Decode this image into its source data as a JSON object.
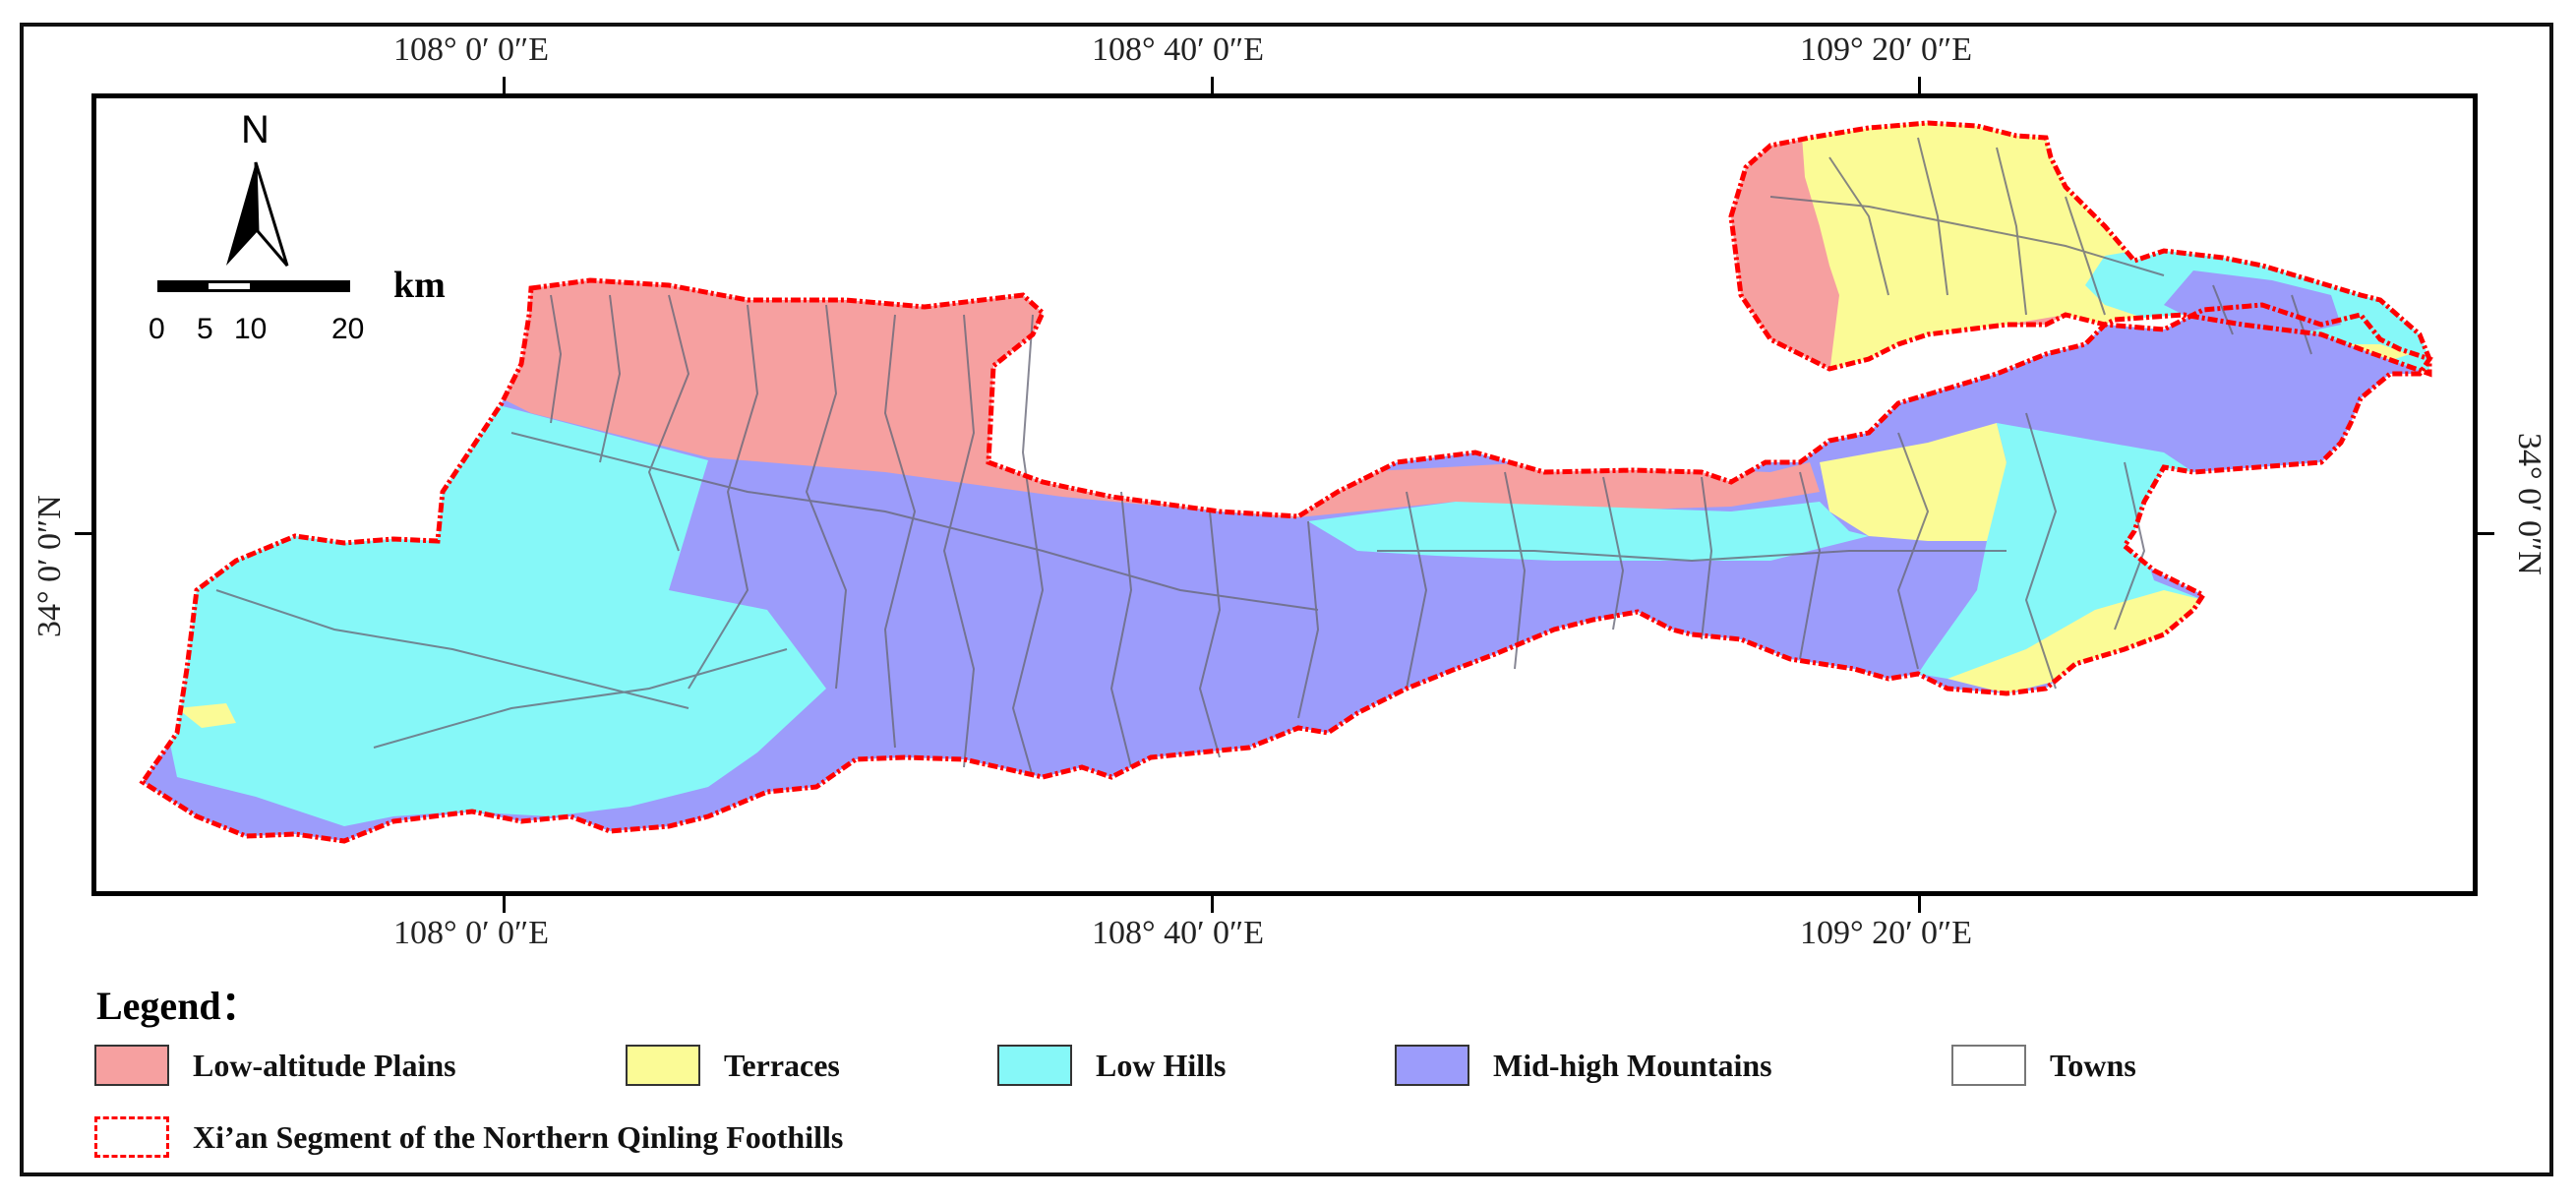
{
  "map": {
    "top_coords": [
      "108° 0′ 0″E",
      "108° 40′ 0″E",
      "109° 20′ 0″E"
    ],
    "bottom_coords": [
      "108° 0′ 0″E",
      "108° 40′ 0″E",
      "109° 20′ 0″E"
    ],
    "left_coord": "34° 0′ 0″N",
    "right_coord": "34° 0′ 0″N",
    "north_arrow": "N",
    "scale_bar": {
      "ticks": [
        "0",
        "5",
        "10",
        "20"
      ],
      "unit": "km"
    }
  },
  "legend": {
    "title": "Legend：",
    "items": [
      {
        "label": "Low-altitude Plains",
        "color": "#f6a0a0"
      },
      {
        "label": "Terraces",
        "color": "#fbfb96"
      },
      {
        "label": "Low Hills",
        "color": "#86f8f8"
      },
      {
        "label": "Mid-high Mountains",
        "color": "#9c9cfb"
      },
      {
        "label": "Towns",
        "color": "#ffffff"
      }
    ],
    "boundary_label": "Xi’an Segment of the Northern Qinling Foothills",
    "boundary_color": "#ff0000"
  }
}
